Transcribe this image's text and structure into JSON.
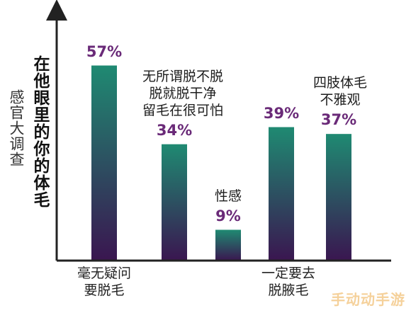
{
  "chart_data": {
    "type": "bar",
    "title": "",
    "side_label": "感官大调查",
    "ylabel": "在他眼里的你的体毛",
    "categories": [
      "毫无疑问\n要脱毛",
      "无所谓脱不脱\n脱就脱干净\n留毛在很可怕",
      "性感",
      "一定要去\n脱腋毛",
      "四肢体毛\n不雅观"
    ],
    "values": [
      57,
      34,
      9,
      39,
      37
    ],
    "value_labels": [
      "57%",
      "34%",
      "9%",
      "39%",
      "37%"
    ],
    "unit": "%",
    "ylim": [
      0,
      72
    ],
    "grid": false,
    "legend": "none"
  },
  "watermark": "手动动手游",
  "colors": {
    "bar_top": "#1f8a72",
    "bar_bottom": "#3a1650",
    "value_label": "#6a2a78",
    "axis": "#222222"
  }
}
